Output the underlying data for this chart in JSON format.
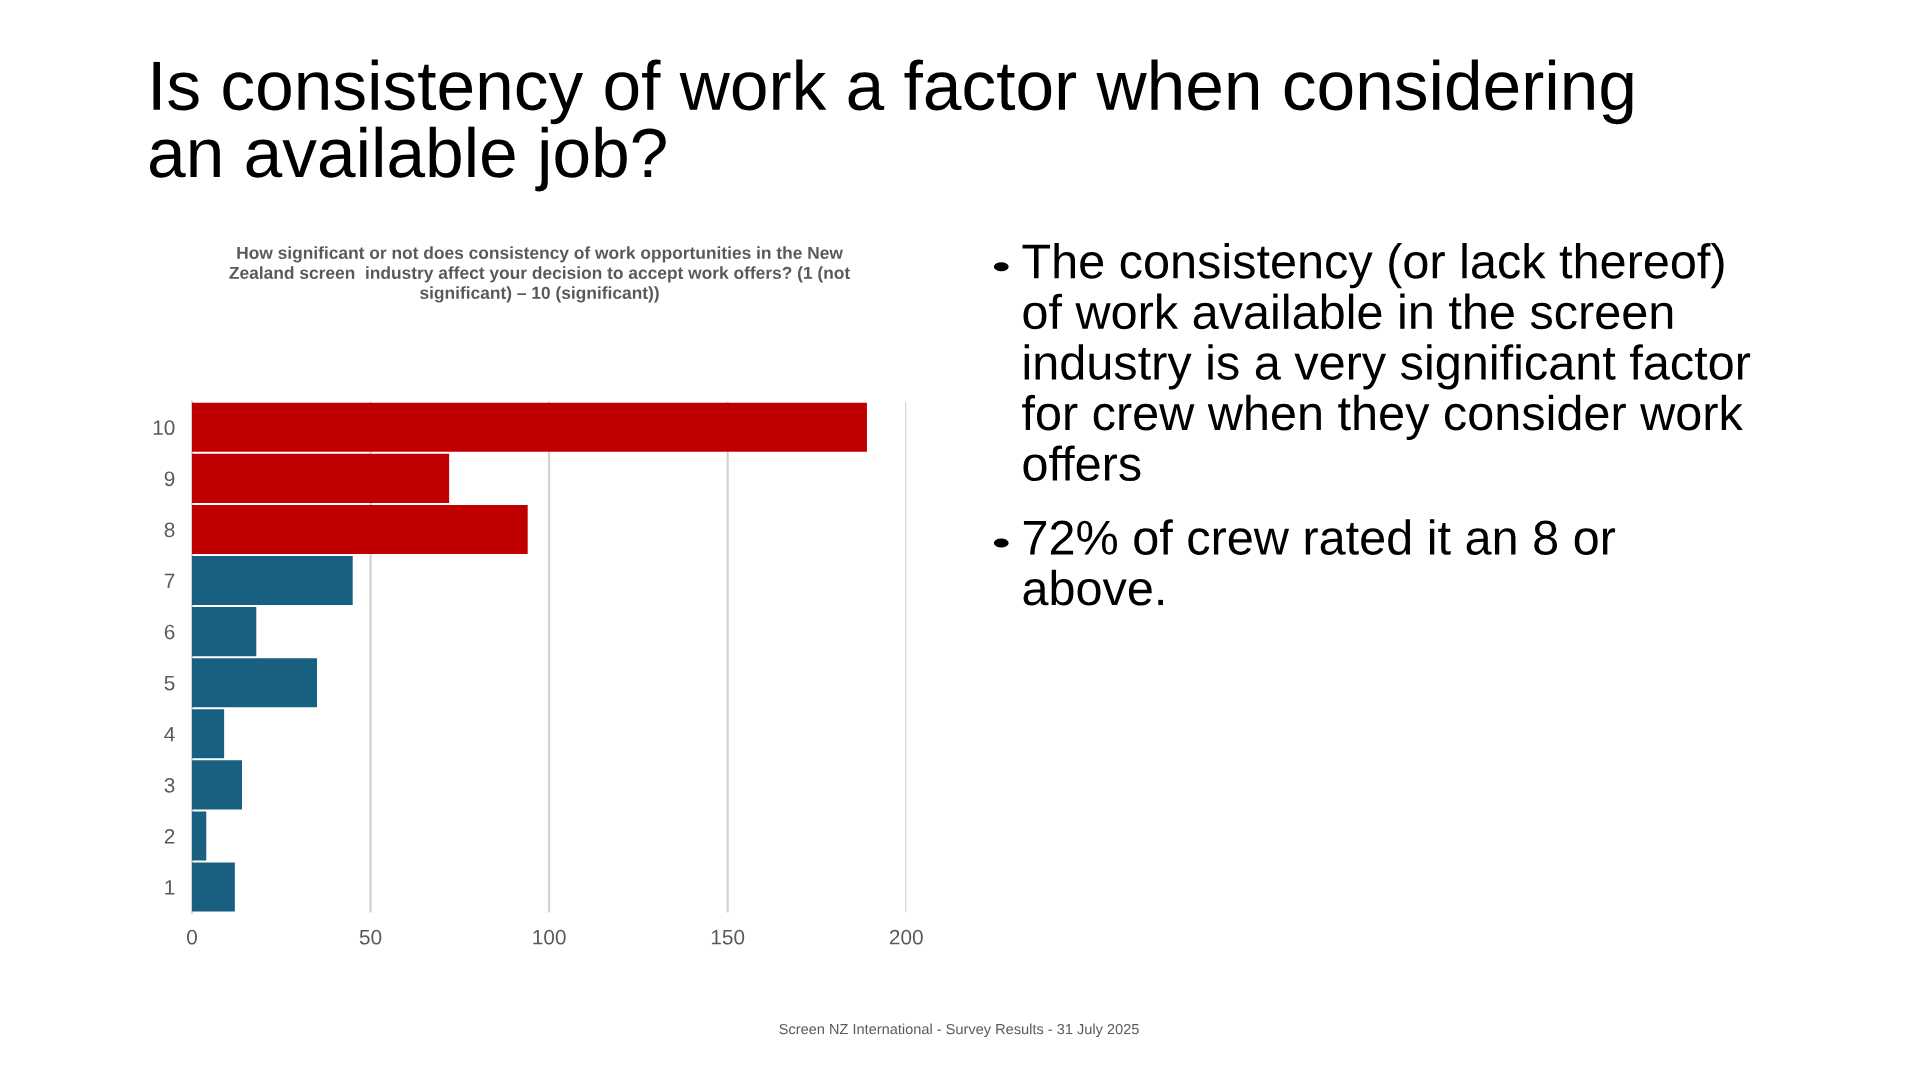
{
  "chart_data": {
    "type": "bar",
    "orientation": "horizontal",
    "title": "Is consistency of work a factor when considering an available job?",
    "subtitle": "How significant or not does consistency of work opportunities in the New Zealand screen  industry affect your decision to accept work offers? (1 (not significant) – 10 (significant))",
    "categories": [
      "10",
      "9",
      "8",
      "7",
      "6",
      "5",
      "4",
      "3",
      "2",
      "1"
    ],
    "values": [
      189,
      72,
      94,
      45,
      18,
      35,
      9,
      14,
      4,
      12
    ],
    "colors": [
      "#c00000",
      "#c00000",
      "#c00000",
      "#185f80",
      "#185f80",
      "#185f80",
      "#185f80",
      "#185f80",
      "#185f80",
      "#185f80"
    ],
    "xlim": [
      0,
      200
    ],
    "xticks": [
      0,
      50,
      100,
      150,
      200
    ],
    "grid": "x",
    "legend": false,
    "annotations": [
      "The consistency (or lack thereof) of work available in the screen industry is a very significant factor for crew when they consider work offers",
      "72% of crew rated it an 8 or above.",
      "Screen NZ International - Survey Results - 31 July 2025"
    ]
  }
}
